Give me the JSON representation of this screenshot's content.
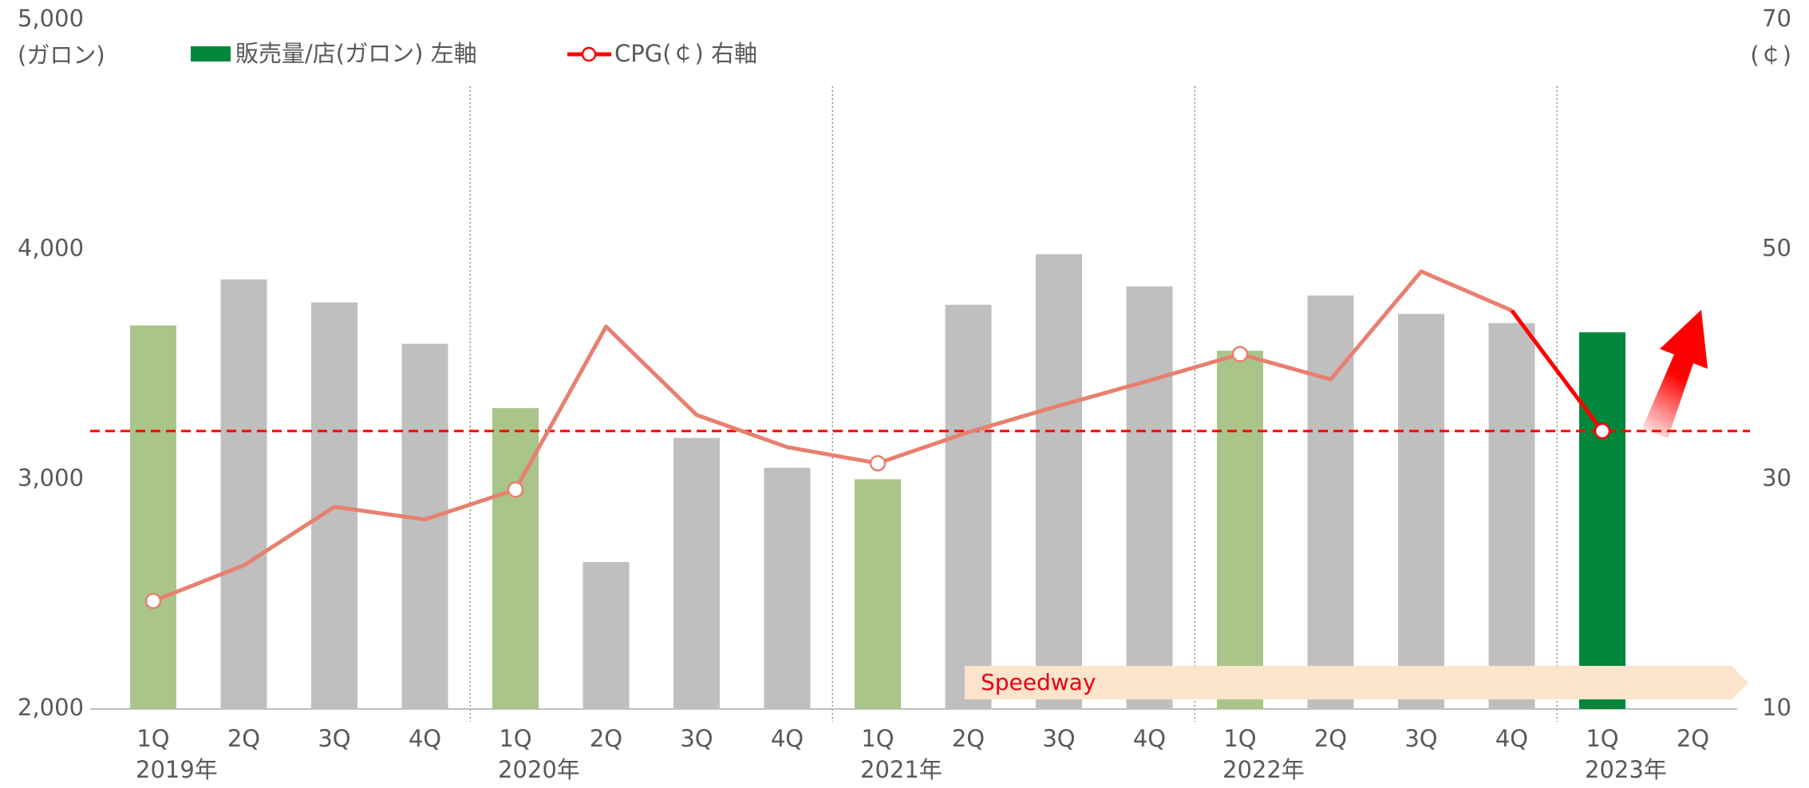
{
  "chart_data": {
    "type": "bar_line",
    "categories": [
      "1Q",
      "2Q",
      "3Q",
      "4Q",
      "1Q",
      "2Q",
      "3Q",
      "4Q",
      "1Q",
      "2Q",
      "3Q",
      "4Q",
      "1Q",
      "2Q",
      "3Q",
      "4Q",
      "1Q",
      "2Q"
    ],
    "x_groups": [
      "2019年",
      null,
      null,
      null,
      "2020年",
      null,
      null,
      null,
      "2021年",
      null,
      null,
      null,
      "2022年",
      null,
      null,
      null,
      "2023年",
      null
    ],
    "ylabel": "(ガロン)",
    "y2label": "(￠)",
    "ylim": [
      2000,
      5000
    ],
    "yticks": [
      {
        "value": 2000,
        "label": "2,000"
      },
      {
        "value": 3000,
        "label": "3,000"
      },
      {
        "value": 4000,
        "label": "4,000"
      },
      {
        "value": 5000,
        "label": "5,000"
      }
    ],
    "y2lim": [
      10,
      70
    ],
    "y2ticks": [
      10,
      30,
      50,
      70
    ],
    "grid": false,
    "series": [
      {
        "name": "販売量/店(ガロン) 左軸",
        "type": "bar",
        "color": "#00873c",
        "colors": [
          "#a9c58a",
          "#bfbfbf",
          "#bfbfbf",
          "#bfbfbf",
          "#a9c58a",
          "#bfbfbf",
          "#bfbfbf",
          "#bfbfbf",
          "#a9c58a",
          "#bfbfbf",
          "#bfbfbf",
          "#bfbfbf",
          "#a9c58a",
          "#bfbfbf",
          "#bfbfbf",
          "#bfbfbf",
          "#00873c",
          null
        ],
        "values": [
          3670,
          3870,
          3770,
          3590,
          3310,
          2640,
          3180,
          3050,
          3000,
          3760,
          3980,
          3840,
          3560,
          3800,
          3720,
          3680,
          3640,
          null
        ]
      },
      {
        "name": "CPG(￠) 右軸",
        "type": "line",
        "axis": "y2",
        "color": "#e8806f",
        "highlight_color": "#ff0000",
        "values": [
          19.4,
          22.5,
          27.6,
          26.5,
          29.1,
          43.3,
          35.6,
          32.8,
          31.4,
          34.1,
          36.4,
          38.6,
          40.9,
          38.7,
          48.1,
          44.7,
          34.2,
          null
        ]
      }
    ],
    "reference_line": {
      "value": 34.2,
      "axis": "y2",
      "color": "#ff0000"
    },
    "annotations": [
      "Speedway"
    ]
  }
}
